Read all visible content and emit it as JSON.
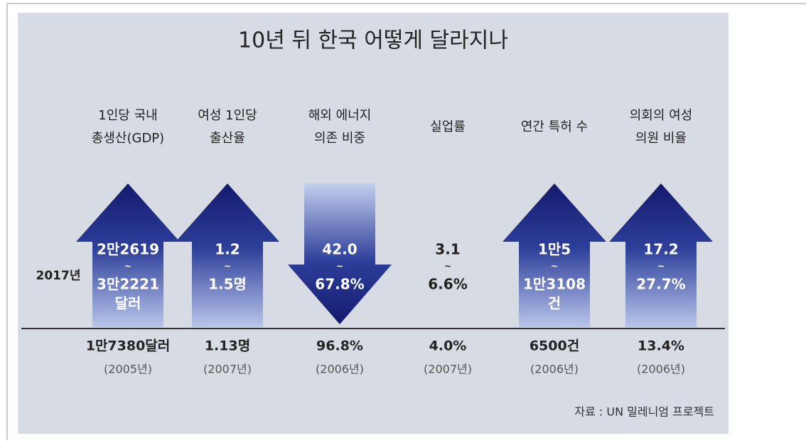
{
  "title": "10년 뒤 한국 어떻게 달라지나",
  "year_label": "2017년",
  "source": "자료 : UN 밀레니엄 프로젝트",
  "columns": [
    {
      "label": [
        "1인당 국내",
        "총생산(GDP)"
      ],
      "direction": "up",
      "projection": [
        "2만2619",
        "~",
        "3만2221",
        "달러"
      ],
      "current": "1만7380달러",
      "year": "(2005년)"
    },
    {
      "label": [
        "여성 1인당",
        "출산율"
      ],
      "direction": "up",
      "projection": [
        "1.2",
        "~",
        "1.5명"
      ],
      "current": "1.13명",
      "year": "(2007년)"
    },
    {
      "label": [
        "해외 에너지",
        "의존 비중"
      ],
      "direction": "down",
      "projection": [
        "42.0",
        "~",
        "67.8%"
      ],
      "current": "96.8%",
      "year": "(2006년)"
    },
    {
      "label": [
        "실업률"
      ],
      "direction": "none",
      "projection": [
        "3.1",
        "~",
        "6.6%"
      ],
      "current": "4.0%",
      "year": "(2007년)"
    },
    {
      "label": [
        "연간 특허 수"
      ],
      "direction": "up",
      "projection": [
        "1만5",
        "~",
        "1만3108",
        "건"
      ],
      "current": "6500건",
      "year": "(2006년)"
    },
    {
      "label": [
        "의회의 여성",
        "의원 비율"
      ],
      "direction": "up",
      "projection": [
        "17.2",
        "~",
        "27.7%"
      ],
      "current": "13.4%",
      "year": "(2006년)"
    }
  ]
}
